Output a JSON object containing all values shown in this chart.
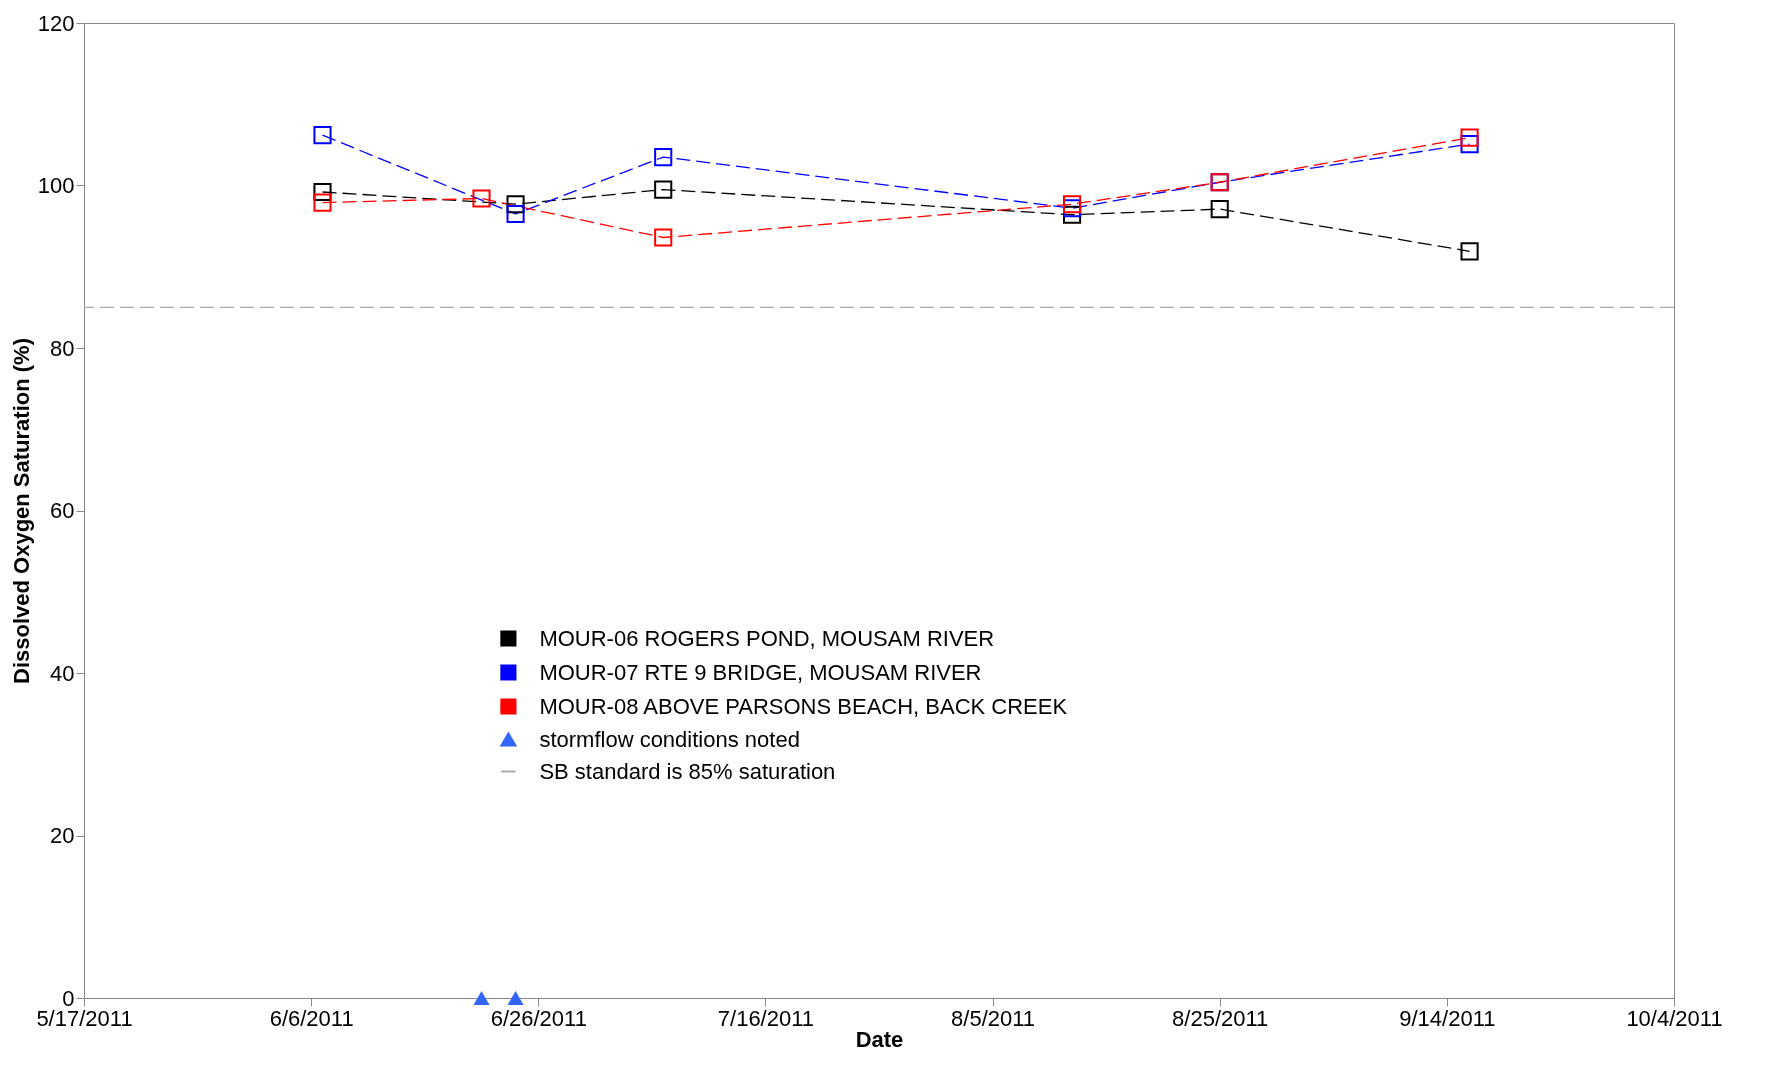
{
  "chart_data": {
    "type": "line",
    "xlabel": "Date",
    "ylabel": "Dissolved Oxygen Saturation (%)",
    "xlim": [
      "2011-05-17",
      "2011-10-04"
    ],
    "xticks": [
      {
        "value": "2011-05-17",
        "label": "5/17/2011"
      },
      {
        "value": "2011-06-06",
        "label": "6/6/2011"
      },
      {
        "value": "2011-06-26",
        "label": "6/26/2011"
      },
      {
        "value": "2011-07-16",
        "label": "7/16/2011"
      },
      {
        "value": "2011-08-05",
        "label": "8/5/2011"
      },
      {
        "value": "2011-08-25",
        "label": "8/25/2011"
      },
      {
        "value": "2011-09-14",
        "label": "9/14/2011"
      },
      {
        "value": "2011-10-04",
        "label": "10/4/2011"
      }
    ],
    "ylim": [
      0,
      120
    ],
    "yticks": [
      0,
      20,
      40,
      60,
      80,
      100,
      120
    ],
    "grid": false,
    "legend": "bottom",
    "marker": "square",
    "line_style": "dashed",
    "series": [
      {
        "name": "MOUR-06 ROGERS POND, MOUSAM RIVER",
        "color": "#000000",
        "x": [
          "2011-06-07",
          "2011-06-24",
          "2011-07-07",
          "2011-08-12",
          "2011-08-25",
          "2011-09-16"
        ],
        "values": [
          99.2,
          97.7,
          99.5,
          96.4,
          97.1,
          91.9
        ]
      },
      {
        "name": "MOUR-07 RTE 9 BRIDGE, MOUSAM RIVER",
        "color": "#0000ff",
        "x": [
          "2011-06-07",
          "2011-06-24",
          "2011-07-07",
          "2011-08-12",
          "2011-08-25",
          "2011-09-16"
        ],
        "values": [
          106.2,
          96.5,
          103.5,
          97.2,
          100.4,
          105.1
        ]
      },
      {
        "name": "MOUR-08 ABOVE PARSONS BEACH, BACK CREEK",
        "color": "#ff0000",
        "x": [
          "2011-06-07",
          "2011-06-21",
          "2011-07-07",
          "2011-08-12",
          "2011-08-25",
          "2011-09-16"
        ],
        "values": [
          97.9,
          98.4,
          93.6,
          97.7,
          100.4,
          105.9
        ]
      },
      {
        "name": "stormflow conditions noted",
        "type": "scatter",
        "marker": "triangle",
        "color": "#3366ff",
        "x": [
          "2011-06-21",
          "2011-06-24"
        ],
        "values": [
          0,
          0
        ]
      }
    ],
    "ref_lines": [
      {
        "axis": "y",
        "value": 85,
        "label": "SB standard is 85% saturation",
        "color": "#aaaaaa",
        "line_style": "dashed"
      }
    ]
  }
}
